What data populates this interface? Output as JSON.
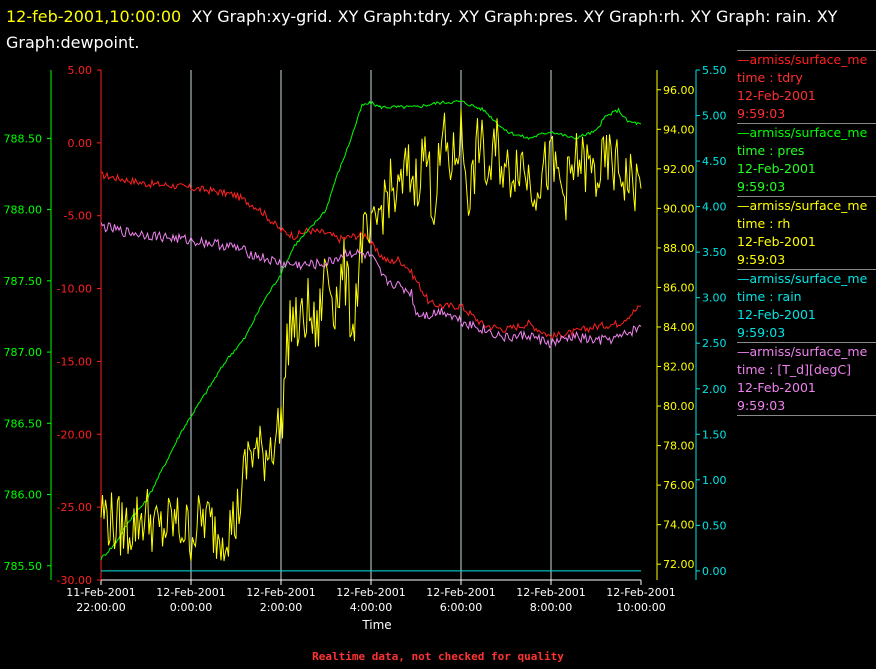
{
  "title": {
    "timestamp": "12-feb-2001,10:00:00",
    "text": "XY Graph:xy-grid.  XY Graph:tdry.  XY Graph:pres.  XY Graph:rh.  XY Graph: rain.  XY Graph:dewpoint."
  },
  "legend": [
    {
      "source": "—armiss/surface_me",
      "var": "time : tdry",
      "date": "12-Feb-2001",
      "time": "9:59:03",
      "color": "#ff2020",
      "text_color": "#ff3030"
    },
    {
      "source": "—armiss/surface_me",
      "var": "time : pres",
      "date": "12-Feb-2001",
      "time": "9:59:03",
      "color": "#00ff00",
      "text_color": "#22ff22"
    },
    {
      "source": "—armiss/surface_me",
      "var": "time : rh",
      "date": "12-Feb-2001",
      "time": "9:59:03",
      "color": "#ffff00",
      "text_color": "#ffff00"
    },
    {
      "source": "—armiss/surface_me",
      "var": "time : rain",
      "date": "12-Feb-2001",
      "time": "9:59:03",
      "color": "#00e5e5",
      "text_color": "#00e5e5"
    },
    {
      "source": "—armiss/surface_me",
      "var": "time : [T_d][degC]",
      "date": "12-Feb-2001",
      "time": "9:59:03",
      "color": "#ee82ee",
      "text_color": "#ee82ee"
    }
  ],
  "footer": "Realtime data, not checked for quality",
  "chart_data": {
    "type": "line",
    "xlabel": "Time",
    "x_range_hours": [
      22,
      34
    ],
    "x_ticks": [
      {
        "hour": 22,
        "line1": "11-Feb-2001",
        "line2": "22:00:00"
      },
      {
        "hour": 24,
        "line1": "12-Feb-2001",
        "line2": "0:00:00"
      },
      {
        "hour": 26,
        "line1": "12-Feb-2001",
        "line2": "2:00:00"
      },
      {
        "hour": 28,
        "line1": "12-Feb-2001",
        "line2": "4:00:00"
      },
      {
        "hour": 30,
        "line1": "12-Feb-2001",
        "line2": "6:00:00"
      },
      {
        "hour": 32,
        "line1": "12-Feb-2001",
        "line2": "8:00:00"
      },
      {
        "hour": 34,
        "line1": "12-Feb-2001",
        "line2": "10:00:00"
      }
    ],
    "grid": "vertical",
    "axes": {
      "tdry": {
        "color": "#ff2020",
        "ylim": [
          -30,
          5
        ],
        "ticks": [
          "5.00",
          "0.00",
          "-5.00",
          "-10.00",
          "-15.00",
          "-20.00",
          "-25.00",
          "-30.00"
        ]
      },
      "pres": {
        "color": "#00ff00",
        "ylim": [
          785.4,
          788.98
        ],
        "ticks": [
          "788.50",
          "788.00",
          "787.50",
          "787.00",
          "786.50",
          "786.00",
          "785.50"
        ]
      },
      "rh": {
        "color": "#ffff00",
        "ylim": [
          71.2,
          97.0
        ],
        "ticks": [
          "96.00",
          "94.00",
          "92.00",
          "90.00",
          "88.00",
          "86.00",
          "84.00",
          "82.00",
          "80.00",
          "78.00",
          "76.00",
          "74.00",
          "72.00"
        ]
      },
      "rain": {
        "color": "#00e5e5",
        "ylim": [
          -0.1,
          5.5
        ],
        "ticks": [
          "5.50",
          "5.00",
          "4.50",
          "4.00",
          "3.50",
          "3.00",
          "2.50",
          "2.00",
          "1.50",
          "1.00",
          "0.50",
          "0.00"
        ]
      }
    },
    "series": [
      {
        "name": "tdry",
        "axis": "tdry",
        "color": "#ff2020",
        "x": [
          22.0,
          22.5,
          23.0,
          23.5,
          24.0,
          24.5,
          25.0,
          25.5,
          26.0,
          26.3,
          26.6,
          27.0,
          27.3,
          27.6,
          27.9,
          28.1,
          28.4,
          28.6,
          28.8,
          29.0,
          29.3,
          29.6,
          30.0,
          30.5,
          31.0,
          31.5,
          32.0,
          32.5,
          33.0,
          33.5,
          34.0
        ],
        "y": [
          -2.2,
          -2.5,
          -2.8,
          -2.9,
          -3.1,
          -3.3,
          -3.6,
          -4.5,
          -6.0,
          -6.4,
          -6.0,
          -6.2,
          -6.6,
          -6.4,
          -6.3,
          -7.4,
          -8.2,
          -8.0,
          -8.5,
          -9.4,
          -11.0,
          -11.2,
          -11.2,
          -12.5,
          -12.8,
          -12.4,
          -13.3,
          -13.0,
          -12.6,
          -12.4,
          -11.2
        ]
      },
      {
        "name": "pres",
        "axis": "pres",
        "color": "#00ff00",
        "x": [
          22.0,
          22.3,
          22.7,
          23.0,
          23.4,
          23.8,
          24.0,
          24.4,
          24.8,
          25.2,
          25.6,
          26.0,
          26.3,
          26.6,
          27.0,
          27.2,
          27.5,
          27.8,
          28.0,
          28.2,
          28.5,
          29.0,
          29.5,
          30.0,
          30.5,
          31.0,
          31.5,
          32.0,
          32.5,
          33.0,
          33.2,
          33.5,
          33.7,
          34.0
        ],
        "y": [
          785.55,
          785.65,
          785.85,
          785.95,
          786.2,
          786.45,
          786.55,
          786.75,
          786.95,
          787.1,
          787.35,
          787.55,
          787.75,
          787.85,
          788.0,
          788.2,
          788.45,
          788.73,
          788.75,
          788.72,
          788.72,
          788.72,
          788.75,
          788.76,
          788.7,
          788.55,
          788.5,
          788.55,
          788.5,
          788.55,
          788.65,
          788.7,
          788.62,
          788.6
        ]
      },
      {
        "name": "rh",
        "axis": "rh",
        "color": "#ffff00",
        "x": [
          22.0,
          22.3,
          22.6,
          23.0,
          23.3,
          23.6,
          24.0,
          24.3,
          24.6,
          25.0,
          25.3,
          25.6,
          26.0,
          26.2,
          26.4,
          26.6,
          26.8,
          27.0,
          27.2,
          27.4,
          27.6,
          27.8,
          28.0,
          28.2,
          28.4,
          28.6,
          28.8,
          29.0,
          29.2,
          29.4,
          29.6,
          29.8,
          30.0,
          30.2,
          30.4,
          30.6,
          30.8,
          31.0,
          31.3,
          31.6,
          32.0,
          32.3,
          32.6,
          33.0,
          33.3,
          33.6,
          34.0
        ],
        "y": [
          74.8,
          74.0,
          73.8,
          74.6,
          73.6,
          74.2,
          73.6,
          74.4,
          73.5,
          74.2,
          77.8,
          77.5,
          79.0,
          84.5,
          83.8,
          84.9,
          83.5,
          87.2,
          85.2,
          86.9,
          84.0,
          88.5,
          88.2,
          89.9,
          91.0,
          90.5,
          92.0,
          91.3,
          93.0,
          90.2,
          93.5,
          92.1,
          93.8,
          90.5,
          93.6,
          91.5,
          93.2,
          91.6,
          92.6,
          91.2,
          92.3,
          90.8,
          92.5,
          91.6,
          92.4,
          91.7,
          91.0
        ]
      },
      {
        "name": "rain",
        "axis": "rain",
        "color": "#00e5e5",
        "x": [
          22,
          34
        ],
        "y": [
          0,
          0
        ]
      },
      {
        "name": "[T_d][degC]",
        "axis": "tdry",
        "color": "#ee82ee",
        "x": [
          22.0,
          22.5,
          23.0,
          23.5,
          24.0,
          24.5,
          25.0,
          25.5,
          26.0,
          26.5,
          27.0,
          27.5,
          28.0,
          28.3,
          28.6,
          28.9,
          29.0,
          29.3,
          29.6,
          30.0,
          30.5,
          31.0,
          31.5,
          32.0,
          32.5,
          33.0,
          33.5,
          34.0
        ],
        "y": [
          -5.7,
          -6.1,
          -6.3,
          -6.5,
          -6.7,
          -6.9,
          -7.2,
          -7.8,
          -8.3,
          -8.4,
          -8.3,
          -7.5,
          -7.8,
          -9.4,
          -9.8,
          -10.3,
          -11.7,
          -11.8,
          -11.5,
          -12.2,
          -12.8,
          -13.4,
          -13.2,
          -13.8,
          -13.3,
          -13.6,
          -13.4,
          -12.6
        ]
      }
    ]
  }
}
